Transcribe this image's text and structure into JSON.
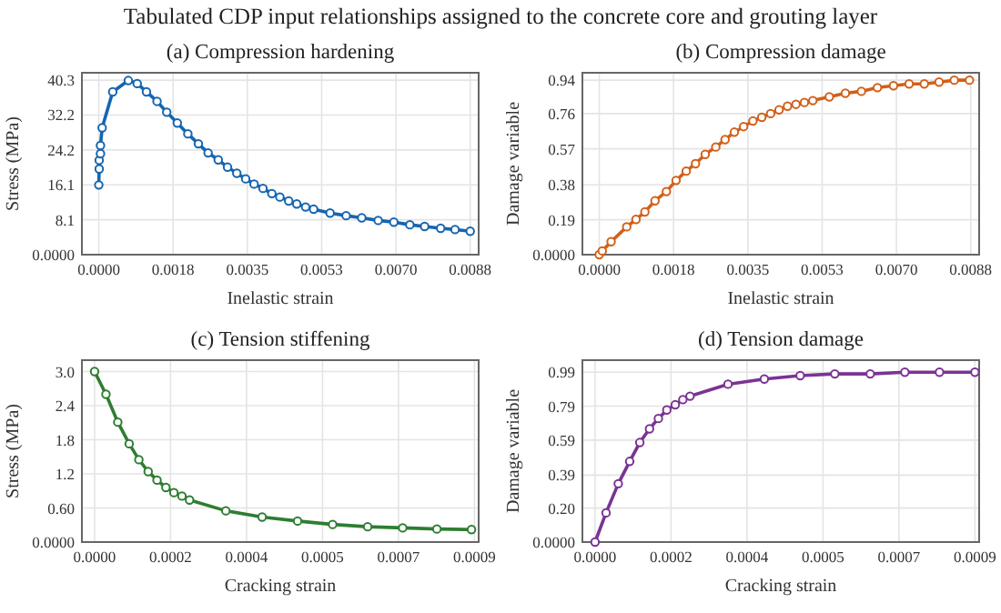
{
  "chart_data": [
    {
      "type": "line",
      "title": "(a) Compression hardening",
      "annotations": [
        "Tabulated CDP input relationships assigned to the concrete core and grouting layer"
      ],
      "xlabel": "Inelastic strain",
      "ylabel": "Stress (MPa)",
      "xlim": [
        -0.0004,
        0.009
      ],
      "ylim": [
        0,
        42
      ],
      "xticks": [
        {
          "value": 0,
          "label": "0.0000"
        },
        {
          "value": 0.00176,
          "label": "0.0018"
        },
        {
          "value": 0.00352,
          "label": "0.0035"
        },
        {
          "value": 0.00528,
          "label": "0.0053"
        },
        {
          "value": 0.00704,
          "label": "0.0070"
        },
        {
          "value": 0.0088,
          "label": "0.0088"
        }
      ],
      "yticks": [
        {
          "value": 0,
          "label": "0.0000"
        },
        {
          "value": 8.06,
          "label": "8.1"
        },
        {
          "value": 16.12,
          "label": "16.1"
        },
        {
          "value": 24.18,
          "label": "24.2"
        },
        {
          "value": 32.24,
          "label": "32.2"
        },
        40.3
      ],
      "grid": true,
      "marker": "circle",
      "line_style": "solid",
      "x": [
        0,
        1e-05,
        1e-05,
        4e-05,
        4e-05,
        8e-05,
        0.00033,
        0.0007,
        0.00091,
        0.00113,
        0.00138,
        0.00161,
        0.00186,
        0.00211,
        0.00236,
        0.00259,
        0.00283,
        0.00305,
        0.00327,
        0.00348,
        0.00368,
        0.00389,
        0.0041,
        0.00429,
        0.0045,
        0.00469,
        0.0049,
        0.00509,
        0.00548,
        0.00586,
        0.00623,
        0.00662,
        0.00699,
        0.00737,
        0.00772,
        0.0081,
        0.00844,
        0.0088
      ],
      "series": [
        {
          "color": "#1565b0",
          "values": [
            16.1,
            19.8,
            21.8,
            23.3,
            25.2,
            29.3,
            37.6,
            40.2,
            39.5,
            37.6,
            35.4,
            32.9,
            30.4,
            27.9,
            25.6,
            23.5,
            21.9,
            20.2,
            18.8,
            17.5,
            16.3,
            15.3,
            14.1,
            13.3,
            12.4,
            11.7,
            11.0,
            10.5,
            9.6,
            9.0,
            8.5,
            7.9,
            7.5,
            6.9,
            6.5,
            6.1,
            5.8,
            5.4
          ]
        }
      ]
    },
    {
      "type": "line",
      "title": "(b) Compression damage",
      "xlabel": "Inelastic strain",
      "ylabel": "Damage variable",
      "xlim": [
        -0.0004,
        0.009
      ],
      "ylim": [
        0,
        0.98
      ],
      "xticks": [
        {
          "value": 0,
          "label": "0.0000"
        },
        {
          "value": 0.00176,
          "label": "0.0018"
        },
        {
          "value": 0.00352,
          "label": "0.0035"
        },
        {
          "value": 0.00528,
          "label": "0.0053"
        },
        {
          "value": 0.00704,
          "label": "0.0070"
        },
        {
          "value": 0.0088,
          "label": "0.0088"
        }
      ],
      "yticks": [
        {
          "value": 0,
          "label": "0.0000"
        },
        {
          "value": 0.188,
          "label": "0.19"
        },
        {
          "value": 0.376,
          "label": "0.38"
        },
        {
          "value": 0.57,
          "label": "0.57"
        },
        {
          "value": 0.76,
          "label": "0.76"
        },
        0.94
      ],
      "grid": true,
      "marker": "circle",
      "line_style": "solid",
      "x": [
        0,
        7e-05,
        0.00028,
        0.00065,
        0.00087,
        0.00108,
        0.00132,
        0.00159,
        0.00182,
        0.00206,
        0.00228,
        0.00251,
        0.00276,
        0.00298,
        0.0032,
        0.00342,
        0.00364,
        0.00385,
        0.00406,
        0.00426,
        0.00446,
        0.00466,
        0.00486,
        0.00506,
        0.00545,
        0.00583,
        0.00621,
        0.00659,
        0.00697,
        0.00734,
        0.0077,
        0.00805,
        0.00841,
        0.00877
      ],
      "series": [
        {
          "color": "#d2601a",
          "values": [
            0,
            0.02,
            0.07,
            0.15,
            0.19,
            0.23,
            0.29,
            0.34,
            0.4,
            0.45,
            0.49,
            0.54,
            0.58,
            0.62,
            0.66,
            0.69,
            0.72,
            0.74,
            0.76,
            0.78,
            0.8,
            0.81,
            0.82,
            0.83,
            0.85,
            0.87,
            0.88,
            0.9,
            0.91,
            0.92,
            0.92,
            0.93,
            0.94,
            0.94
          ]
        }
      ]
    },
    {
      "type": "line",
      "title": "(c) Tension stiffening",
      "xlabel": "Cracking strain",
      "ylabel": "Stress (MPa)",
      "xlim": [
        -3e-05,
        0.00091
      ],
      "ylim": [
        0,
        3.2
      ],
      "xticks": [
        {
          "value": 0,
          "label": "0.0000"
        },
        {
          "value": 0.00018,
          "label": "0.0002"
        },
        {
          "value": 0.00036,
          "label": "0.0004"
        },
        {
          "value": 0.00054,
          "label": "0.0005"
        },
        {
          "value": 0.00072,
          "label": "0.0007"
        },
        0.0009
      ],
      "yticks": [
        {
          "value": 0,
          "label": "0.0000"
        },
        {
          "value": 0.6,
          "label": "0.60"
        },
        1.2,
        1.8,
        2.4,
        {
          "value": 3.0,
          "label": "3.0"
        }
      ],
      "grid": true,
      "marker": "circle",
      "line_style": "solid",
      "x": [
        0,
        2.7e-05,
        5.5e-05,
        8.2e-05,
        0.000105,
        0.000127,
        0.000148,
        0.000169,
        0.000188,
        0.000207,
        0.000225,
        0.000311,
        0.000397,
        0.000481,
        0.000564,
        0.000647,
        0.00073,
        0.000811,
        0.000893
      ],
      "series": [
        {
          "color": "#2e7d32",
          "values": [
            3.0,
            2.6,
            2.11,
            1.73,
            1.45,
            1.24,
            1.09,
            0.96,
            0.87,
            0.81,
            0.74,
            0.55,
            0.44,
            0.37,
            0.31,
            0.27,
            0.25,
            0.23,
            0.22
          ]
        }
      ]
    },
    {
      "type": "line",
      "title": "(d) Tension damage",
      "xlabel": "Cracking strain",
      "ylabel": "Damage variable",
      "xlim": [
        -3e-05,
        0.00091
      ],
      "ylim": [
        0,
        1.06
      ],
      "xticks": [
        {
          "value": 0,
          "label": "0.0000"
        },
        {
          "value": 0.00018,
          "label": "0.0002"
        },
        {
          "value": 0.00036,
          "label": "0.0004"
        },
        {
          "value": 0.00054,
          "label": "0.0005"
        },
        {
          "value": 0.00072,
          "label": "0.0007"
        },
        0.0009
      ],
      "yticks": [
        {
          "value": 0,
          "label": "0.0000"
        },
        {
          "value": 0.198,
          "label": "0.20"
        },
        {
          "value": 0.39,
          "label": "0.39"
        },
        {
          "value": 0.594,
          "label": "0.59"
        },
        {
          "value": 0.792,
          "label": "0.79"
        },
        0.99
      ],
      "grid": true,
      "marker": "circle",
      "line_style": "solid",
      "x": [
        0,
        2.6e-05,
        5.5e-05,
        8.2e-05,
        0.000106,
        0.000129,
        0.00015,
        0.00017,
        0.00019,
        0.000208,
        0.000225,
        0.000315,
        0.000401,
        0.000486,
        0.000568,
        0.000652,
        0.000734,
        0.000816,
        0.0009
      ],
      "series": [
        {
          "color": "#7b3294",
          "values": [
            0,
            0.17,
            0.34,
            0.47,
            0.58,
            0.66,
            0.72,
            0.77,
            0.8,
            0.83,
            0.85,
            0.92,
            0.95,
            0.97,
            0.98,
            0.98,
            0.99,
            0.99,
            0.99
          ]
        }
      ]
    }
  ]
}
